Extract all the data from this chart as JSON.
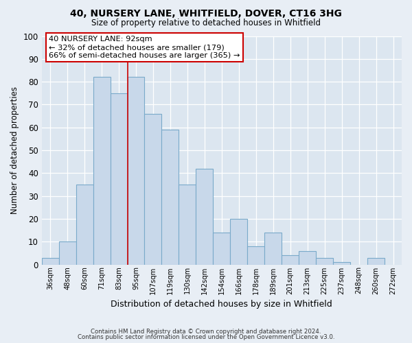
{
  "title": "40, NURSERY LANE, WHITFIELD, DOVER, CT16 3HG",
  "subtitle": "Size of property relative to detached houses in Whitfield",
  "xlabel": "Distribution of detached houses by size in Whitfield",
  "ylabel": "Number of detached properties",
  "bin_labels": [
    "36sqm",
    "48sqm",
    "60sqm",
    "71sqm",
    "83sqm",
    "95sqm",
    "107sqm",
    "119sqm",
    "130sqm",
    "142sqm",
    "154sqm",
    "166sqm",
    "178sqm",
    "189sqm",
    "201sqm",
    "213sqm",
    "225sqm",
    "237sqm",
    "248sqm",
    "260sqm",
    "272sqm"
  ],
  "bar_heights": [
    3,
    10,
    35,
    82,
    75,
    82,
    66,
    59,
    35,
    42,
    14,
    20,
    8,
    14,
    4,
    6,
    3,
    1,
    0,
    3,
    0
  ],
  "bar_color": "#c8d8ea",
  "bar_edge_color": "#7aaaca",
  "marker_line_color": "#cc0000",
  "annotation_title": "40 NURSERY LANE: 92sqm",
  "annotation_line1": "← 32% of detached houses are smaller (179)",
  "annotation_line2": "66% of semi-detached houses are larger (365) →",
  "annotation_box_color": "#ffffff",
  "annotation_box_edge_color": "#cc0000",
  "ylim": [
    0,
    100
  ],
  "yticks": [
    0,
    10,
    20,
    30,
    40,
    50,
    60,
    70,
    80,
    90,
    100
  ],
  "fig_bg_color": "#e8eef5",
  "plot_bg_color": "#dce6f0",
  "footer1": "Contains HM Land Registry data © Crown copyright and database right 2024.",
  "footer2": "Contains public sector information licensed under the Open Government Licence v3.0."
}
